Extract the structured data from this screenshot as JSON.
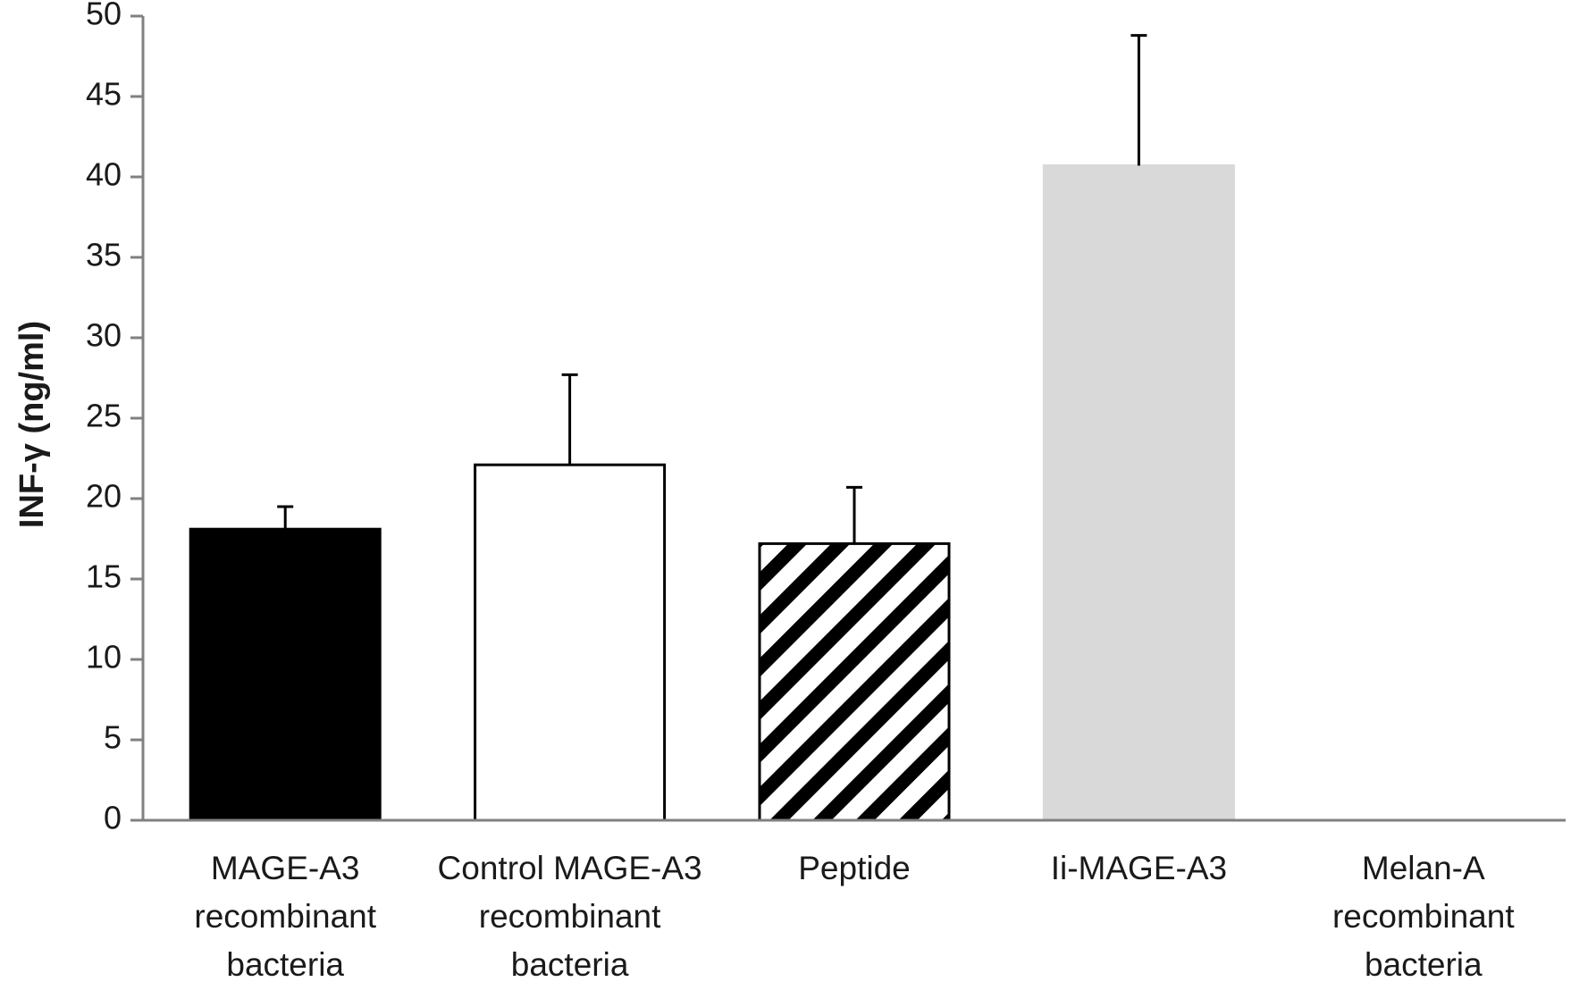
{
  "chart_data": {
    "type": "bar",
    "title": "",
    "xlabel": "",
    "ylabel": "INF-γ (ng/ml)",
    "ylim": [
      0,
      50
    ],
    "yticks": [
      0,
      5,
      10,
      15,
      20,
      25,
      30,
      35,
      40,
      45,
      50
    ],
    "grid": false,
    "legend": "none",
    "categories": [
      [
        "MAGE-A3",
        "recombinant",
        "bacteria"
      ],
      [
        "Control MAGE-A3",
        "recombinant",
        "bacteria"
      ],
      [
        "Peptide"
      ],
      [
        "Ii-MAGE-A3"
      ],
      [
        "Melan-A",
        "recombinant",
        "bacteria"
      ]
    ],
    "values": [
      18.1,
      22.1,
      17.2,
      40.7,
      0
    ],
    "errors": [
      1.4,
      5.6,
      3.5,
      8.1,
      0
    ],
    "bar_styles": [
      {
        "fill": "#000000",
        "stroke": "#000000",
        "pattern": "solid"
      },
      {
        "fill": "#ffffff",
        "stroke": "#000000",
        "pattern": "solid"
      },
      {
        "fill": "#ffffff",
        "stroke": "#000000",
        "pattern": "diagonal-stripes"
      },
      {
        "fill": "#d9d9d9",
        "stroke": "#d9d9d9",
        "pattern": "solid"
      },
      {
        "fill": "#ffffff",
        "stroke": "#000000",
        "pattern": "solid"
      }
    ],
    "colors": {
      "axis": "#808080",
      "error_bar": "#000000",
      "text": "#1a1a1a"
    }
  }
}
